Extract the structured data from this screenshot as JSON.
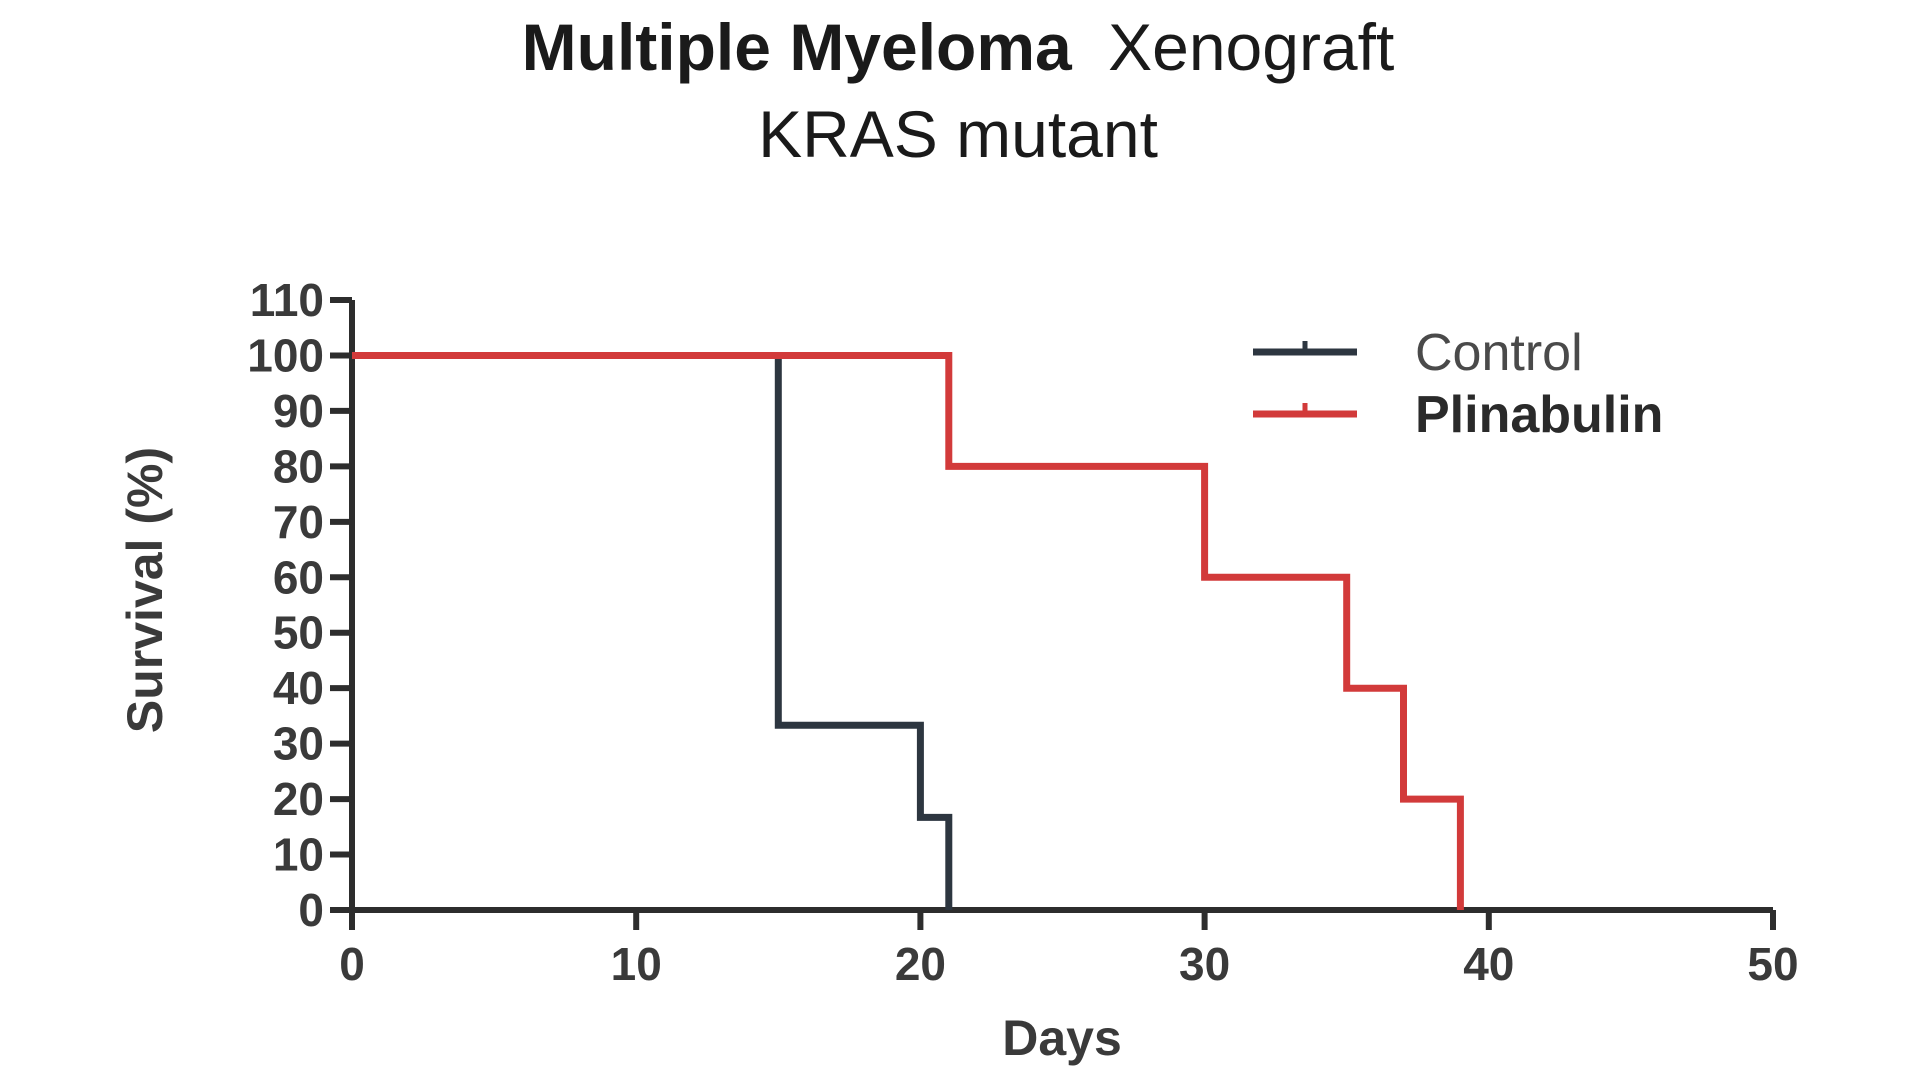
{
  "chart_data": {
    "type": "line",
    "subtype": "kaplan-meier step survival",
    "title_bold": "Multiple Myeloma",
    "title_regular": "Xenograft",
    "subtitle": "KRAS mutant",
    "xlabel": "Days",
    "ylabel": "Survival (%)",
    "xlim": [
      0,
      50
    ],
    "ylim": [
      0,
      110
    ],
    "xticks": [
      0,
      10,
      20,
      30,
      40,
      50
    ],
    "yticks": [
      0,
      10,
      20,
      30,
      40,
      50,
      60,
      70,
      80,
      90,
      100,
      110
    ],
    "grid": false,
    "legend_position": "top-right",
    "series": [
      {
        "name": "Control",
        "color": "#2d3640",
        "label_bold": false,
        "x": [
          0,
          15,
          15,
          20,
          20,
          21,
          21
        ],
        "y": [
          100,
          100,
          33.3,
          33.3,
          16.7,
          16.7,
          0
        ]
      },
      {
        "name": "Plinabulin",
        "color": "#d23a3a",
        "label_bold": true,
        "x": [
          0,
          21,
          21,
          30,
          30,
          35,
          35,
          37,
          37,
          39,
          39
        ],
        "y": [
          100,
          100,
          80,
          80,
          60,
          60,
          40,
          40,
          20,
          20,
          0
        ]
      }
    ]
  }
}
